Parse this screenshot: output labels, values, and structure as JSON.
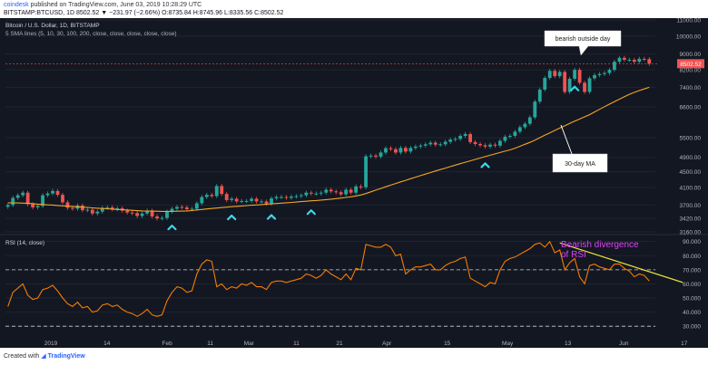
{
  "header": {
    "publisher": "coindesk",
    "published": "published on TradingView.com, June 03, 2019 10:28:29 UTC",
    "ohlc_line": "BITSTAMP:BTCUSD, 1D  8502.52 ▼ −231.97 (−2.66%)  O:8735.84  H:8745.96  L:8335.56  C:8502.52"
  },
  "footer": {
    "created_with": "Created with",
    "brand": "TradingView"
  },
  "colors": {
    "background": "#131722",
    "candle_up": "#26a69a",
    "candle_down": "#ef5350",
    "ma": "#f5a623",
    "rsi": "#f57c00",
    "annotation_magenta": "#e040fb",
    "trendline": "#e8e03a",
    "marker": "#3fd6e8"
  },
  "chart_data": [
    {
      "type": "candlestick",
      "title": "Bitcoin / U.S. Dollar, 1D, BITSTAMP",
      "subtitle": "5 SMA lines (5, 10, 30, 100, 200, close, close, close, close, close)",
      "ylim": [
        3160,
        11000
      ],
      "y_ticks": [
        11000,
        10000,
        9000,
        8200,
        7400,
        6600,
        5500,
        4900,
        4500,
        4100,
        3700,
        3420,
        3160
      ],
      "last_price_label": "8502.52",
      "x_ticks": [
        "2019",
        "14",
        "Feb",
        "11",
        "Mar",
        "11",
        "21",
        "Apr",
        "15",
        "May",
        "13",
        "Jun",
        "17"
      ],
      "close_values": [
        3700,
        3860,
        3920,
        3980,
        3720,
        3650,
        3680,
        3920,
        3960,
        4020,
        3930,
        3760,
        3640,
        3620,
        3690,
        3590,
        3600,
        3520,
        3560,
        3640,
        3650,
        3610,
        3630,
        3580,
        3540,
        3530,
        3470,
        3520,
        3580,
        3460,
        3420,
        3430,
        3560,
        3620,
        3660,
        3650,
        3610,
        3620,
        3740,
        3880,
        3930,
        3900,
        4140,
        3950,
        3810,
        3840,
        3780,
        3790,
        3790,
        3840,
        3780,
        3780,
        3730,
        3850,
        3880,
        3880,
        3860,
        3890,
        3900,
        3920,
        3980,
        3960,
        3960,
        3980,
        4050,
        4010,
        3990,
        3940,
        4050,
        3980,
        4130,
        4110,
        4930,
        4950,
        4920,
        5040,
        5170,
        5140,
        5040,
        5180,
        5070,
        5180,
        5220,
        5250,
        5290,
        5340,
        5280,
        5290,
        5370,
        5440,
        5460,
        5560,
        5620,
        5360,
        5300,
        5260,
        5220,
        5280,
        5250,
        5400,
        5530,
        5560,
        5700,
        5850,
        5970,
        6200,
        6800,
        7300,
        7820,
        8150,
        7900,
        8100,
        7200,
        7780,
        8200,
        7600,
        7200,
        7800,
        7950,
        8000,
        8050,
        8200,
        8600,
        8800,
        8700,
        8700,
        8600,
        8750,
        8735,
        8503
      ],
      "sma30": [
        3750,
        3748,
        3745,
        3742,
        3740,
        3730,
        3720,
        3712,
        3705,
        3700,
        3690,
        3682,
        3676,
        3670,
        3662,
        3655,
        3650,
        3640,
        3632,
        3625,
        3620,
        3612,
        3605,
        3600,
        3594,
        3588,
        3580,
        3575,
        3572,
        3570,
        3568,
        3565,
        3564,
        3565,
        3568,
        3570,
        3575,
        3582,
        3595,
        3605,
        3616,
        3625,
        3635,
        3645,
        3655,
        3665,
        3672,
        3680,
        3688,
        3696,
        3702,
        3710,
        3718,
        3726,
        3734,
        3742,
        3750,
        3758,
        3766,
        3775,
        3784,
        3793,
        3800,
        3810,
        3820,
        3830,
        3842,
        3855,
        3870,
        3885,
        3905,
        3925,
        3960,
        4000,
        4040,
        4080,
        4120,
        4160,
        4200,
        4240,
        4280,
        4320,
        4360,
        4400,
        4440,
        4480,
        4520,
        4560,
        4600,
        4640,
        4680,
        4720,
        4760,
        4800,
        4840,
        4880,
        4920,
        4960,
        5000,
        5040,
        5080,
        5120,
        5170,
        5230,
        5290,
        5350,
        5420,
        5500,
        5580,
        5660,
        5740,
        5820,
        5900,
        5980,
        6060,
        6140,
        6220,
        6300,
        6400,
        6500,
        6600,
        6700,
        6800,
        6900,
        7000,
        7100,
        7180,
        7260,
        7330,
        7400
      ],
      "markers": [
        {
          "type": "up-arrow",
          "index": 33
        },
        {
          "type": "up-arrow",
          "index": 45
        },
        {
          "type": "up-arrow",
          "index": 53
        },
        {
          "type": "up-arrow",
          "index": 61
        },
        {
          "type": "up-arrow",
          "index": 96
        },
        {
          "type": "up-arrow",
          "index": 114
        }
      ],
      "annotations": [
        {
          "text": "bearish outside day"
        },
        {
          "text": "30-day MA"
        }
      ]
    },
    {
      "type": "line",
      "title": "RSI (14, close)",
      "ylim": [
        25,
        93
      ],
      "y_ticks": [
        90,
        80,
        70,
        60,
        50,
        40,
        30
      ],
      "hlines": [
        70,
        30
      ],
      "values": [
        44,
        54,
        57,
        60,
        52,
        49,
        50,
        56,
        57,
        59,
        55,
        50,
        46,
        44,
        47,
        43,
        44,
        40,
        41,
        45,
        46,
        44,
        45,
        42,
        40,
        39,
        37,
        39,
        42,
        38,
        37,
        38,
        48,
        54,
        58,
        57,
        54,
        55,
        67,
        74,
        77,
        76,
        58,
        60,
        56,
        58,
        57,
        60,
        59,
        61,
        58,
        58,
        56,
        61,
        62,
        62,
        61,
        62,
        63,
        64,
        67,
        66,
        64,
        66,
        70,
        67,
        65,
        63,
        67,
        63,
        71,
        70,
        88,
        87,
        86,
        86,
        88,
        86,
        80,
        81,
        67,
        70,
        72,
        72,
        73,
        74,
        70,
        70,
        73,
        75,
        76,
        78,
        79,
        64,
        62,
        60,
        58,
        61,
        60,
        70,
        76,
        78,
        79,
        81,
        83,
        85,
        88,
        89,
        86,
        90,
        82,
        84,
        70,
        75,
        78,
        65,
        60,
        73,
        74,
        72,
        71,
        70,
        74,
        74,
        71,
        69,
        65,
        67,
        66,
        62
      ],
      "annotations": [
        {
          "text": "Bearish divergence\nof RSI"
        }
      ],
      "divergence_line": {
        "from": [
          111,
          89
        ],
        "to": [
          131,
          61
        ]
      },
      "x_ticks": [
        "2019",
        "14",
        "Feb",
        "11",
        "Mar",
        "11",
        "21",
        "Apr",
        "15",
        "May",
        "13",
        "Jun",
        "17"
      ]
    }
  ]
}
